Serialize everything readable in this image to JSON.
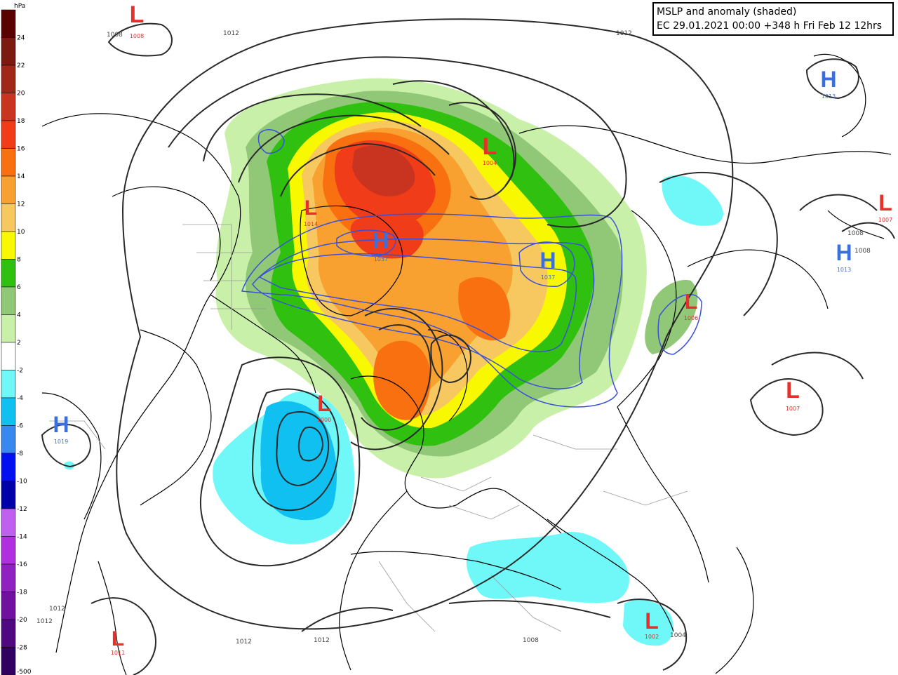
{
  "title": {
    "line1": "MSLP and anomaly (shaded)",
    "line2": "EC 29.01.2021 00:00 +348 h Fri Feb 12 12hrs"
  },
  "legend": {
    "unit": "hPa",
    "bins": [
      {
        "label": "24",
        "color": "#5a0000"
      },
      {
        "label": "22",
        "color": "#7a1a10"
      },
      {
        "label": "20",
        "color": "#a02818"
      },
      {
        "label": "18",
        "color": "#c83420"
      },
      {
        "label": "16",
        "color": "#f03c18"
      },
      {
        "label": "14",
        "color": "#f87010"
      },
      {
        "label": "12",
        "color": "#f8a030"
      },
      {
        "label": "10",
        "color": "#f8c860"
      },
      {
        "label": "8",
        "color": "#f8f800"
      },
      {
        "label": "6",
        "color": "#30c010"
      },
      {
        "label": "4",
        "color": "#90c878"
      },
      {
        "label": "2",
        "color": "#c8f0a8"
      },
      {
        "label": "-2",
        "color": "#ffffff"
      },
      {
        "label": "-4",
        "color": "#70f8f8"
      },
      {
        "label": "-6",
        "color": "#10c0f0"
      },
      {
        "label": "-8",
        "color": "#3888f0"
      },
      {
        "label": "-10",
        "color": "#0010f0"
      },
      {
        "label": "-12",
        "color": "#0000a8"
      },
      {
        "label": "-14",
        "color": "#c060f0"
      },
      {
        "label": "-16",
        "color": "#b030e0"
      },
      {
        "label": "-18",
        "color": "#9020c0"
      },
      {
        "label": "-20",
        "color": "#7010a0"
      },
      {
        "label": "-28",
        "color": "#500880"
      },
      {
        "label": "-500",
        "color": "#300060"
      }
    ]
  },
  "pressure_systems": [
    {
      "type": "L",
      "value": "1008"
    },
    {
      "type": "L",
      "value": "1004"
    },
    {
      "type": "L",
      "value": "1014"
    },
    {
      "type": "H",
      "value": "1037"
    },
    {
      "type": "H",
      "value": "1037"
    },
    {
      "type": "H",
      "value": "1013"
    },
    {
      "type": "L",
      "value": "1007"
    },
    {
      "type": "H",
      "value": "1013"
    },
    {
      "type": "L",
      "value": "1006"
    },
    {
      "type": "L",
      "value": "1007"
    },
    {
      "type": "L",
      "value": "1000"
    },
    {
      "type": "H",
      "value": "1019"
    },
    {
      "type": "L",
      "value": "1011"
    },
    {
      "type": "L",
      "value": "1002"
    }
  ],
  "isobar_labels": [
    "1008",
    "1012",
    "1012",
    "1008",
    "1008",
    "1012",
    "1012",
    "1012",
    "1012",
    "1008",
    "1004"
  ],
  "colors": {
    "low": "#e8302a",
    "high": "#3a6fe0",
    "isobar": "#2a2a2a",
    "coast": "#000000",
    "border": "#9a9a9a"
  }
}
